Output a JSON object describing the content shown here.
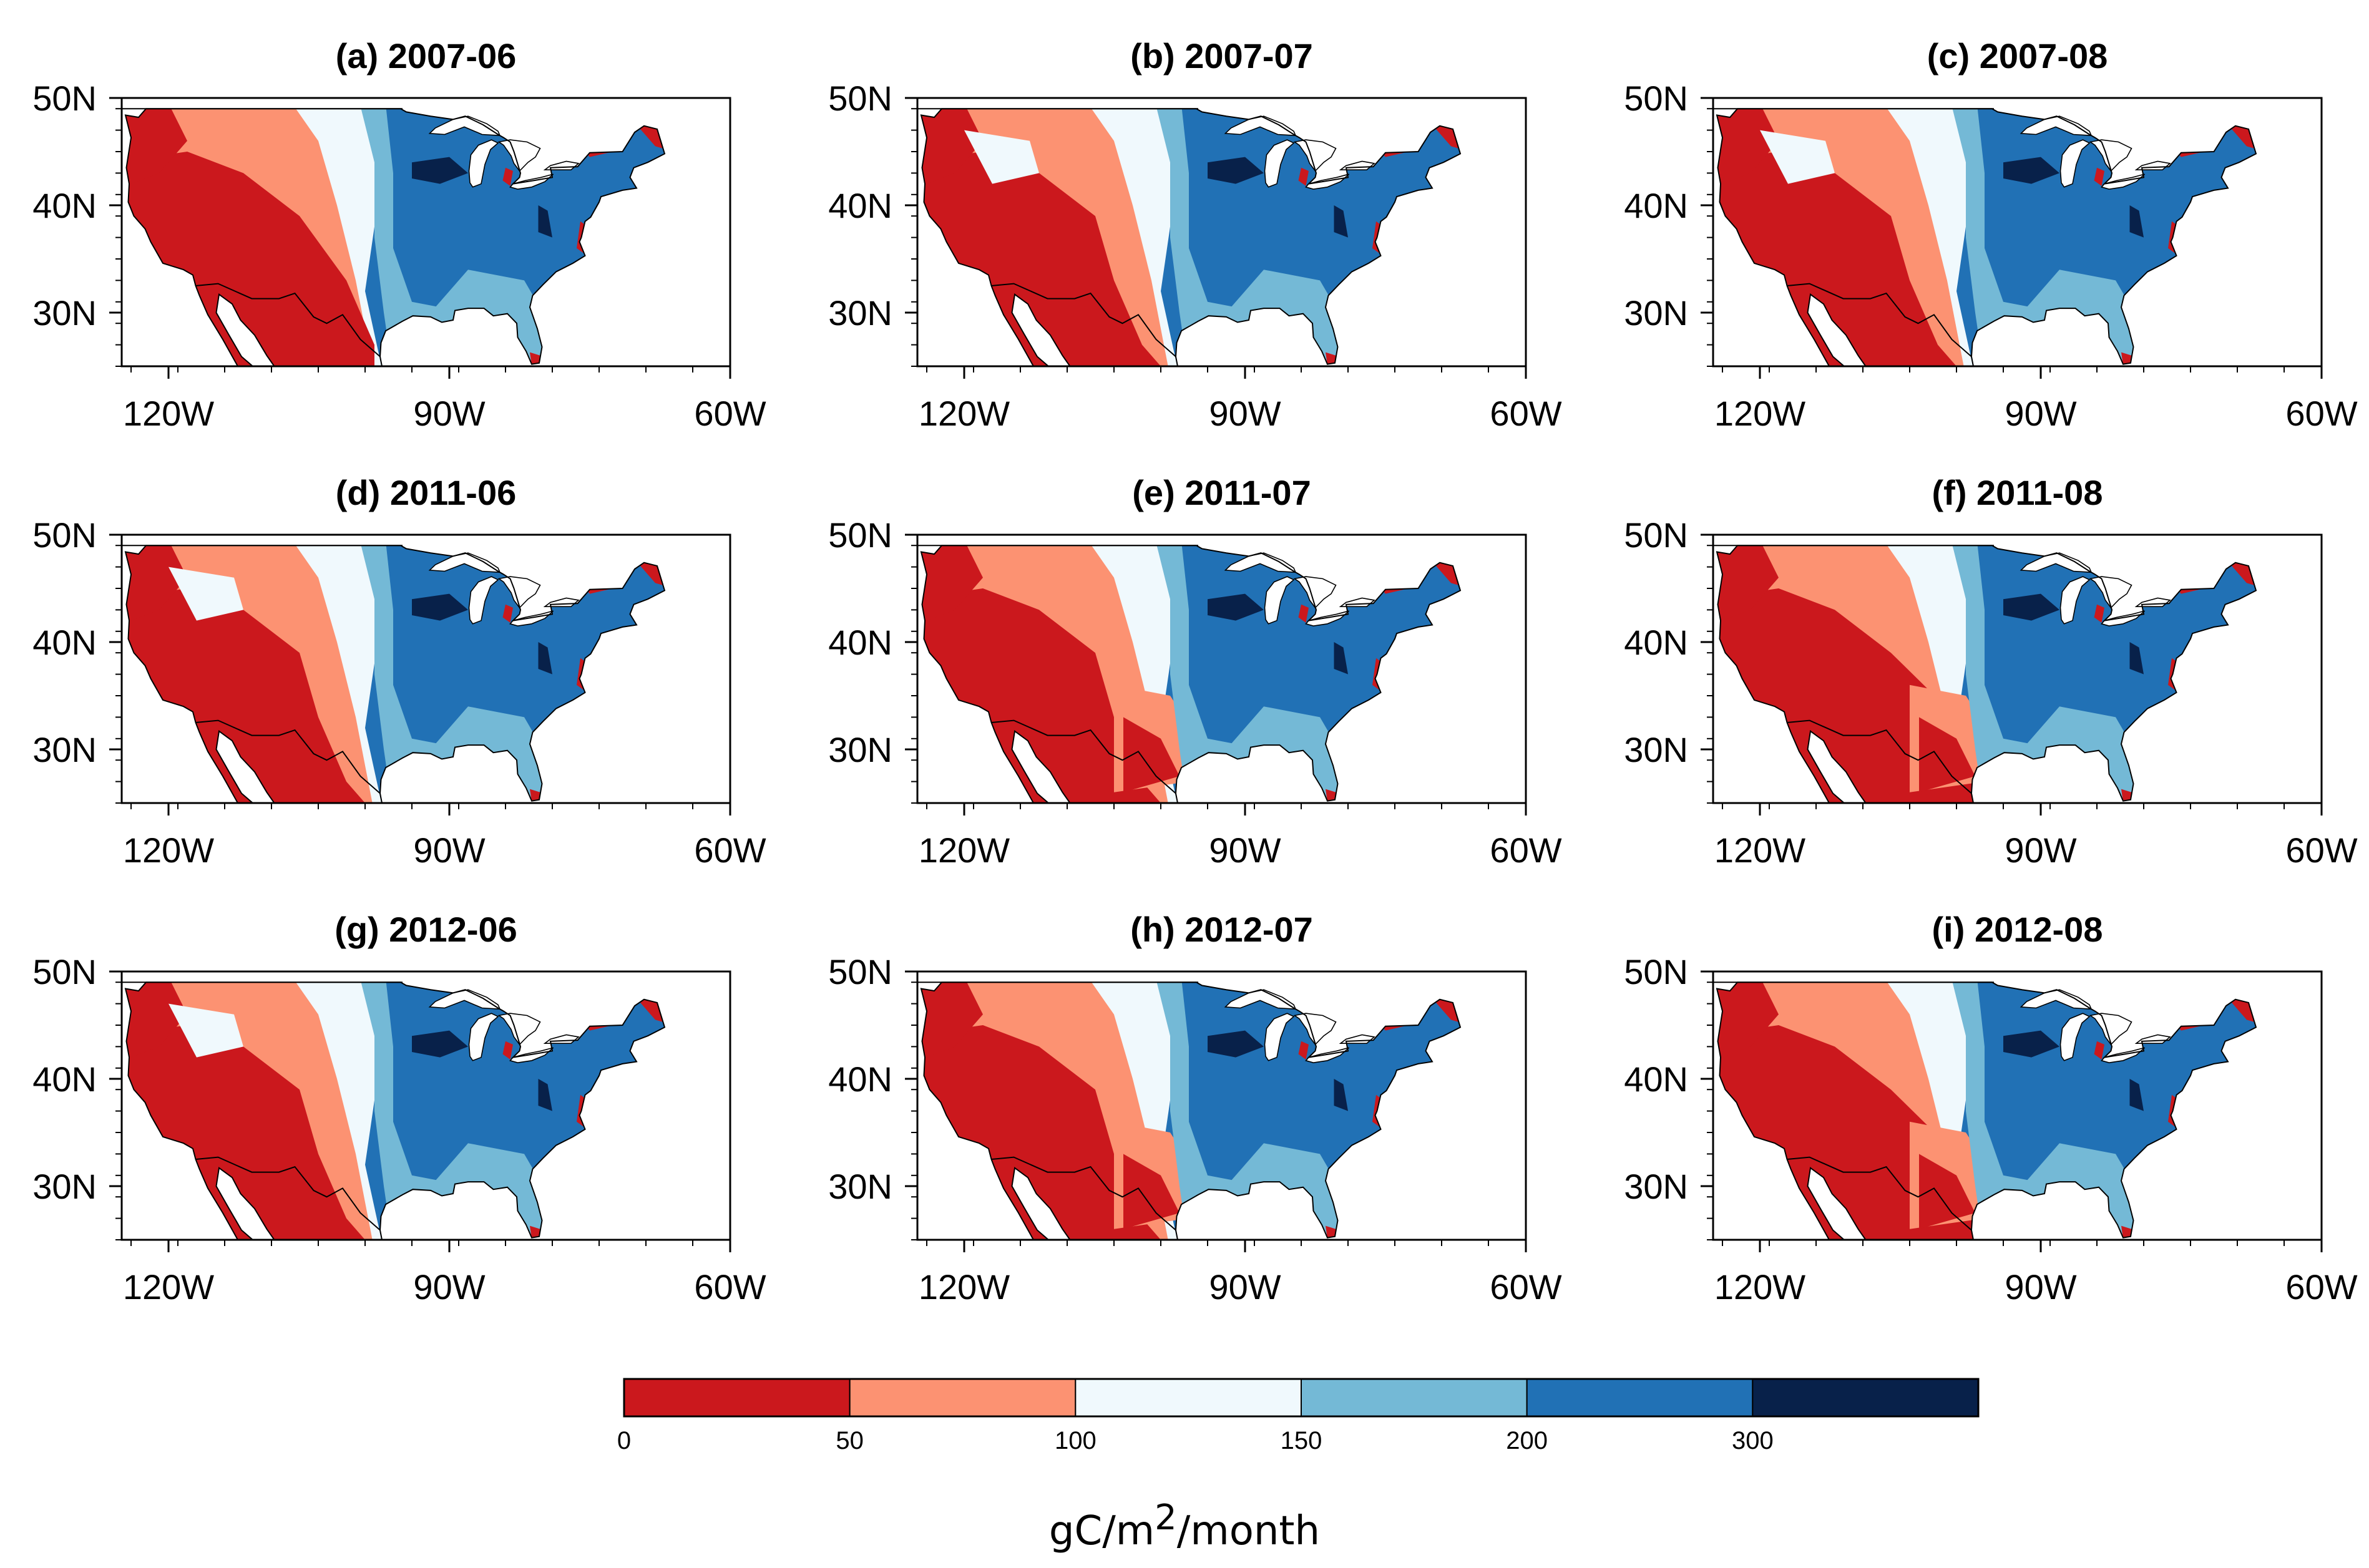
{
  "chart_data": {
    "type": "filled-contour-map-grid",
    "region": "Contiguous United States",
    "variable_unit": {
      "prefix": "gC/m",
      "superscript": "2",
      "suffix": "/month"
    },
    "panels": [
      {
        "title": "(a) 2007-06",
        "regime": "west_dry_strong"
      },
      {
        "title": "(b) 2007-07",
        "regime": "west_dry_wide"
      },
      {
        "title": "(c) 2007-08",
        "regime": "west_dry_wide"
      },
      {
        "title": "(d) 2011-06",
        "regime": "west_dry_mixed"
      },
      {
        "title": "(e) 2011-07",
        "regime": "south_dry"
      },
      {
        "title": "(f) 2011-08",
        "regime": "south_dry_strong"
      },
      {
        "title": "(g) 2012-06",
        "regime": "west_dry_wide"
      },
      {
        "title": "(h) 2012-07",
        "regime": "south_dry"
      },
      {
        "title": "(i) 2012-08",
        "regime": "south_dry_strong"
      }
    ],
    "lat_ticks": [
      {
        "label": "50N",
        "value": 50
      },
      {
        "label": "40N",
        "value": 40
      },
      {
        "label": "30N",
        "value": 30
      }
    ],
    "lon_ticks": [
      {
        "label": "120W",
        "value": -120
      },
      {
        "label": "90W",
        "value": -90
      },
      {
        "label": "60W",
        "value": -60
      }
    ],
    "lat_range": [
      25,
      50
    ],
    "lon_range": [
      -125,
      -60
    ],
    "colorbar": {
      "labels": [
        "0",
        "50",
        "100",
        "150",
        "200",
        "300"
      ],
      "bins": [
        {
          "range": "0-50",
          "color": "#cb181d"
        },
        {
          "range": "50-100",
          "color": "#fc9272"
        },
        {
          "range": "100-150",
          "color": "#f0f9fd"
        },
        {
          "range": "150-200",
          "color": "#74b9d6"
        },
        {
          "range": "200-300",
          "color": "#2171b5"
        },
        {
          "range": ">300",
          "color": "#08214a"
        }
      ]
    }
  }
}
